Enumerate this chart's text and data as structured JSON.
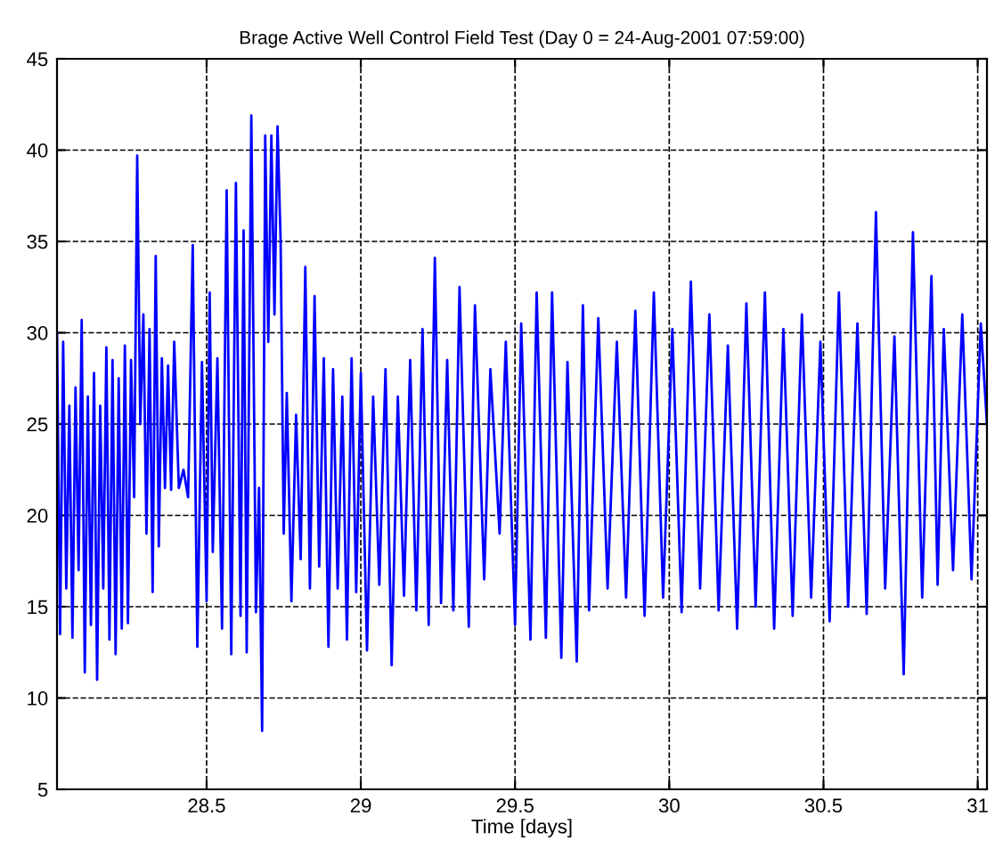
{
  "chart_data": {
    "type": "line",
    "title": "Brage Active Well Control Field Test (Day 0 = 24-Aug-2001 07:59:00)",
    "xlabel": "Time [days]",
    "xlim": [
      28.015,
      31.03
    ],
    "ylim": [
      5,
      45
    ],
    "xticks": [
      28.5,
      29,
      29.5,
      30,
      30.5,
      31
    ],
    "yticks": [
      5,
      10,
      15,
      20,
      25,
      30,
      35,
      40,
      45
    ],
    "grid": true,
    "series": [
      {
        "color": "#0000ff",
        "x": [
          28.015,
          28.025,
          28.035,
          28.045,
          28.055,
          28.065,
          28.075,
          28.085,
          28.095,
          28.105,
          28.115,
          28.125,
          28.135,
          28.145,
          28.155,
          28.165,
          28.175,
          28.185,
          28.195,
          28.205,
          28.215,
          28.225,
          28.235,
          28.245,
          28.255,
          28.265,
          28.275,
          28.285,
          28.295,
          28.305,
          28.315,
          28.325,
          28.335,
          28.345,
          28.355,
          28.365,
          28.375,
          28.385,
          28.395,
          28.41,
          28.425,
          28.44,
          28.455,
          28.47,
          28.485,
          28.5,
          28.51,
          28.52,
          28.535,
          28.55,
          28.565,
          28.58,
          28.595,
          28.61,
          28.62,
          28.63,
          28.645,
          28.66,
          28.67,
          28.68,
          28.69,
          28.7,
          28.71,
          28.72,
          28.73,
          28.74,
          28.75,
          28.76,
          28.775,
          28.79,
          28.805,
          28.82,
          28.835,
          28.85,
          28.865,
          28.88,
          28.895,
          28.91,
          28.925,
          28.94,
          28.955,
          28.97,
          28.985,
          29.0,
          29.02,
          29.04,
          29.06,
          29.08,
          29.1,
          29.12,
          29.14,
          29.16,
          29.18,
          29.2,
          29.22,
          29.24,
          29.26,
          29.28,
          29.3,
          29.32,
          29.35,
          29.37,
          29.4,
          29.42,
          29.45,
          29.47,
          29.5,
          29.52,
          29.55,
          29.57,
          29.6,
          29.62,
          29.65,
          29.67,
          29.7,
          29.72,
          29.74,
          29.77,
          29.8,
          29.83,
          29.86,
          29.89,
          29.92,
          29.95,
          29.98,
          30.01,
          30.04,
          30.07,
          30.1,
          30.13,
          30.16,
          30.19,
          30.22,
          30.25,
          30.28,
          30.31,
          30.34,
          30.37,
          30.4,
          30.43,
          30.46,
          30.49,
          30.52,
          30.55,
          30.58,
          30.61,
          30.64,
          30.67,
          30.7,
          30.73,
          30.76,
          30.79,
          30.82,
          30.85,
          30.87,
          30.89,
          30.92,
          30.95,
          30.98,
          31.01,
          31.03
        ],
        "values": [
          30,
          13.5,
          29.5,
          16,
          26,
          13.3,
          27,
          17,
          30.7,
          11.4,
          26.5,
          14,
          27.8,
          11,
          26,
          16,
          29.2,
          13.2,
          28.5,
          12.4,
          27.5,
          13.8,
          29.3,
          14.1,
          28.5,
          21,
          39.7,
          25,
          31,
          19,
          30.2,
          15.8,
          34.2,
          18.3,
          28.6,
          21.5,
          28.2,
          21.4,
          29.5,
          21.5,
          22.5,
          21,
          34.8,
          12.8,
          28.4,
          15.3,
          32.2,
          18,
          28.6,
          13.8,
          37.8,
          12.4,
          38.2,
          14.5,
          35.6,
          12.5,
          41.9,
          14.7,
          21.5,
          8.2,
          40.8,
          29.5,
          40.8,
          31,
          41.3,
          35,
          19,
          26.7,
          15.3,
          25.5,
          17.6,
          33.6,
          16,
          32,
          17.2,
          28.6,
          12.8,
          28,
          16,
          26.5,
          13.2,
          28.6,
          15.8,
          27.8,
          12.6,
          26.5,
          16.2,
          28,
          11.8,
          26.5,
          15.6,
          28.5,
          14.8,
          30.2,
          14,
          34.1,
          15.2,
          28.5,
          14.8,
          32.5,
          13.9,
          31.5,
          16.5,
          28,
          19,
          29.5,
          14,
          30.5,
          13.2,
          32.2,
          13.3,
          32.2,
          12.2,
          28.4,
          12,
          31.5,
          14.8,
          30.8,
          16,
          29.5,
          15.5,
          31.2,
          14.5,
          32.2,
          15.5,
          30.2,
          14.7,
          32.8,
          16,
          31,
          14.8,
          29.3,
          13.8,
          31.6,
          15,
          32.2,
          13.8,
          30.2,
          14.5,
          31,
          15.5,
          29.5,
          14.2,
          32.2,
          15,
          30.5,
          14.6,
          36.6,
          16,
          29.8,
          11.3,
          35.5,
          15.5,
          33.1,
          16.2,
          30.2,
          17,
          31,
          16.5,
          30.5,
          25
        ]
      }
    ]
  }
}
